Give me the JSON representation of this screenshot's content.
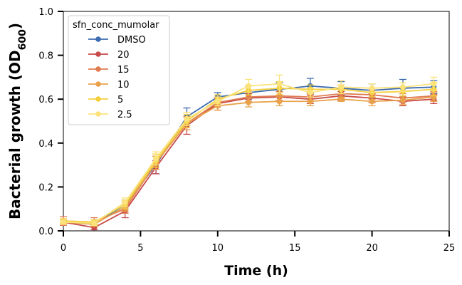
{
  "chart_data": {
    "type": "line",
    "xlabel": "Time (h)",
    "ylabel": "Bacterial growth (OD600)",
    "ylabel_main": "Bacterial growth (OD",
    "ylabel_sub": "600",
    "ylabel_close": ")",
    "xlim": [
      0,
      25
    ],
    "ylim": [
      0,
      1.0
    ],
    "xticks": [
      0,
      5,
      10,
      15,
      20,
      25
    ],
    "yticks": [
      0.0,
      0.2,
      0.4,
      0.6,
      0.8,
      1.0
    ],
    "xtick_labels": [
      "0",
      "5",
      "10",
      "15",
      "20",
      "25"
    ],
    "ytick_labels": [
      "0.0",
      "0.2",
      "0.4",
      "0.6",
      "0.8",
      "1.0"
    ],
    "grid": false,
    "legend_position": "top-left",
    "legend_title": "sfn_conc_mumolar",
    "x": [
      0,
      2,
      4,
      6,
      8,
      10,
      12,
      14,
      16,
      18,
      20,
      22,
      24
    ],
    "series": [
      {
        "name": "DMSO",
        "color": "#3b6bb0",
        "values": [
          0.04,
          0.03,
          0.12,
          0.3,
          0.52,
          0.61,
          0.63,
          0.645,
          0.66,
          0.65,
          0.64,
          0.65,
          0.655
        ],
        "errors": [
          0.01,
          0.01,
          0.02,
          0.04,
          0.04,
          0.02,
          0.03,
          0.03,
          0.035,
          0.03,
          0.03,
          0.04,
          0.03
        ]
      },
      {
        "name": "20",
        "color": "#c84a4a",
        "values": [
          0.04,
          0.015,
          0.09,
          0.29,
          0.48,
          0.58,
          0.605,
          0.61,
          0.6,
          0.615,
          0.605,
          0.59,
          0.6
        ],
        "errors": [
          0.01,
          0.01,
          0.03,
          0.03,
          0.04,
          0.03,
          0.02,
          0.02,
          0.02,
          0.02,
          0.02,
          0.02,
          0.02
        ]
      },
      {
        "name": "15",
        "color": "#e07b50",
        "values": [
          0.045,
          0.04,
          0.1,
          0.31,
          0.49,
          0.585,
          0.61,
          0.615,
          0.61,
          0.625,
          0.62,
          0.605,
          0.615
        ],
        "errors": [
          0.02,
          0.02,
          0.02,
          0.03,
          0.03,
          0.02,
          0.02,
          0.02,
          0.02,
          0.02,
          0.02,
          0.02,
          0.02
        ]
      },
      {
        "name": "10",
        "color": "#e9a24a",
        "values": [
          0.04,
          0.03,
          0.11,
          0.31,
          0.49,
          0.57,
          0.585,
          0.59,
          0.59,
          0.6,
          0.59,
          0.595,
          0.61
        ],
        "errors": [
          0.01,
          0.01,
          0.02,
          0.03,
          0.03,
          0.02,
          0.02,
          0.02,
          0.02,
          0.01,
          0.02,
          0.02,
          0.02
        ]
      },
      {
        "name": "5",
        "color": "#f4d03f",
        "values": [
          0.045,
          0.04,
          0.12,
          0.32,
          0.5,
          0.6,
          0.64,
          0.65,
          0.645,
          0.645,
          0.63,
          0.635,
          0.645
        ],
        "errors": [
          0.01,
          0.01,
          0.02,
          0.03,
          0.03,
          0.02,
          0.02,
          0.03,
          0.02,
          0.02,
          0.02,
          0.02,
          0.03
        ]
      },
      {
        "name": "2.5",
        "color": "#fbe27a",
        "values": [
          0.04,
          0.035,
          0.13,
          0.33,
          0.51,
          0.59,
          0.66,
          0.67,
          0.63,
          0.655,
          0.65,
          0.655,
          0.67
        ],
        "errors": [
          0.01,
          0.01,
          0.02,
          0.03,
          0.03,
          0.02,
          0.03,
          0.04,
          0.02,
          0.03,
          0.02,
          0.02,
          0.03
        ]
      }
    ]
  }
}
